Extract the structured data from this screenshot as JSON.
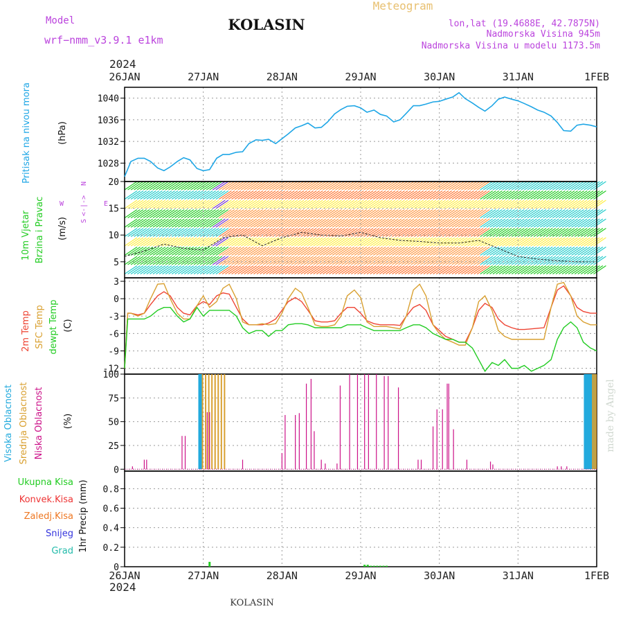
{
  "header": {
    "model_label": "Model",
    "model_name": "wrf−nmm_v3.9.1  e1km",
    "station": "KOLASIN",
    "meteogram": "Meteogram",
    "lonlat": "lon,lat (19.4688E, 42.7875N)",
    "altitude": "Nadmorska Visina 945m",
    "model_altitude": "Nadmorska Visina u modelu 1173.5m",
    "year": "2024",
    "footer_station": "KOLASIN",
    "watermark": "made by Angel"
  },
  "time_axis": {
    "labels": [
      "26JAN",
      "27JAN",
      "28JAN",
      "29JAN",
      "30JAN",
      "31JAN",
      "1FEB"
    ]
  },
  "colors": {
    "pressure": "#1ea6e6",
    "temp2m": "#ee4433",
    "sfc": "#d9a030",
    "dewpt": "#22cc22",
    "high_cloud": "#22aadd",
    "mid_cloud": "#d9a030",
    "low_cloud": "#cc1188",
    "grid": "#999999",
    "wind_label": "#22cc22",
    "wind_dir": "#bb44dd"
  },
  "chart_data": [
    {
      "type": "line",
      "panel": "pressure",
      "ylabel_text": "Pritisak na nivou mora",
      "unit": "(hPa)",
      "yticks": [
        1028,
        1032,
        1036,
        1040
      ],
      "ylim": [
        1024.6,
        1042
      ],
      "grid": true,
      "x_days": [
        0,
        0.08,
        0.17,
        0.25,
        0.33,
        0.42,
        0.5,
        0.58,
        0.67,
        0.75,
        0.83,
        0.92,
        1.0,
        1.08,
        1.17,
        1.25,
        1.33,
        1.42,
        1.5,
        1.58,
        1.67,
        1.75,
        1.83,
        1.92,
        2.0,
        2.08,
        2.17,
        2.25,
        2.33,
        2.42,
        2.5,
        2.58,
        2.67,
        2.75,
        2.83,
        2.92,
        3.0,
        3.08,
        3.17,
        3.25,
        3.33,
        3.42,
        3.5,
        3.58,
        3.67,
        3.75,
        3.83,
        3.92,
        4.0,
        4.08,
        4.17,
        4.25,
        4.33,
        4.42,
        4.5,
        4.58,
        4.67,
        4.75,
        4.83,
        4.92,
        5.0,
        5.08,
        5.17,
        5.25,
        5.33,
        5.42,
        5.5,
        5.58,
        5.67,
        5.75,
        5.83,
        5.92,
        6.0
      ],
      "series": [
        {
          "values": [
            1025.5,
            1028.3,
            1028.9,
            1028.9,
            1028.3,
            1027.1,
            1026.6,
            1027.3,
            1028.3,
            1029.0,
            1028.6,
            1027.0,
            1026.6,
            1026.8,
            1028.9,
            1029.6,
            1029.6,
            1030.0,
            1030.1,
            1031.6,
            1032.3,
            1032.2,
            1032.4,
            1031.6,
            1032.5,
            1033.4,
            1034.5,
            1034.9,
            1035.4,
            1034.5,
            1034.6,
            1035.6,
            1037.1,
            1037.9,
            1038.5,
            1038.6,
            1038.2,
            1037.4,
            1037.8,
            1037.0,
            1036.7,
            1035.6,
            1036.0,
            1037.2,
            1038.6,
            1038.6,
            1038.9,
            1039.3,
            1039.4,
            1039.8,
            1040.2,
            1041.0,
            1039.9,
            1039.1,
            1038.3,
            1037.6,
            1038.6,
            1039.8,
            1040.2,
            1039.8,
            1039.5,
            1039.0,
            1038.4,
            1037.8,
            1037.4,
            1036.7,
            1035.5,
            1034.0,
            1033.9,
            1035.0,
            1035.2,
            1035.0,
            1034.7
          ]
        }
      ]
    },
    {
      "type": "line",
      "panel": "wind",
      "ylabel_text": [
        "10m Vjetar",
        "Brzina i Pravac"
      ],
      "unit": "(m/s)",
      "direction_legend": {
        "n": "N",
        "s": "S",
        "w": "W",
        "e": "E"
      },
      "yticks": [
        5,
        10,
        15,
        20
      ],
      "ylim": [
        2,
        20
      ],
      "grid": true,
      "x_days": [
        0,
        0.25,
        0.5,
        0.75,
        1.0,
        1.25,
        1.5,
        1.75,
        2.0,
        2.25,
        2.5,
        2.75,
        3.0,
        3.25,
        3.5,
        3.75,
        4.0,
        4.25,
        4.5,
        4.75,
        5.0,
        5.25,
        5.5,
        5.75,
        6.0
      ],
      "series": [
        {
          "values": [
            6,
            7,
            8.3,
            7.5,
            7.2,
            9.5,
            10,
            8,
            9.5,
            10.5,
            10,
            9.8,
            10.5,
            9.5,
            9,
            8.8,
            8.5,
            8.5,
            9,
            7.5,
            6,
            5.5,
            5.2,
            5,
            5
          ]
        }
      ],
      "barb_colorbands": [
        "#22cc22",
        "#22cccc",
        "#ffee44",
        "#ff9944",
        "#ff7733",
        "#7733cc"
      ]
    },
    {
      "type": "line",
      "panel": "temperature",
      "ylabels": [
        "2m Temp",
        "SFC Temp",
        "dewpt Temp"
      ],
      "unit": "(C)",
      "yticks": [
        -12,
        -9,
        -6,
        -3,
        0,
        3
      ],
      "ylim": [
        -13,
        3.6
      ],
      "grid": true,
      "x_days": [
        0,
        0.04,
        0.08,
        0.17,
        0.25,
        0.33,
        0.42,
        0.5,
        0.58,
        0.67,
        0.75,
        0.83,
        0.92,
        1.0,
        1.08,
        1.17,
        1.25,
        1.33,
        1.42,
        1.5,
        1.58,
        1.67,
        1.75,
        1.83,
        1.92,
        2.0,
        2.08,
        2.17,
        2.25,
        2.33,
        2.42,
        2.5,
        2.58,
        2.67,
        2.75,
        2.83,
        2.92,
        3.0,
        3.08,
        3.17,
        3.25,
        3.33,
        3.42,
        3.5,
        3.58,
        3.67,
        3.75,
        3.83,
        3.92,
        4.0,
        4.08,
        4.17,
        4.25,
        4.33,
        4.42,
        4.5,
        4.58,
        4.67,
        4.75,
        4.83,
        4.92,
        5.0,
        5.08,
        5.17,
        5.25,
        5.33,
        5.42,
        5.5,
        5.58,
        5.67,
        5.75,
        5.83,
        5.92,
        6.0
      ],
      "series": [
        {
          "name": "2m Temp",
          "values": [
            -12,
            -2.5,
            -2.5,
            -2.8,
            -2.5,
            -1,
            0.5,
            1.2,
            0.5,
            -1.5,
            -2.5,
            -2.8,
            -1.2,
            -0.5,
            -1,
            0.5,
            1,
            0.8,
            -1.5,
            -3.5,
            -4.5,
            -4.5,
            -4.5,
            -4.2,
            -3.5,
            -2,
            -0.5,
            0.2,
            -0.5,
            -2,
            -3.8,
            -4,
            -4,
            -3.8,
            -2.5,
            -1.5,
            -1.5,
            -2.5,
            -3.8,
            -4.3,
            -4.5,
            -4.5,
            -4.5,
            -4.6,
            -3,
            -1.5,
            -1,
            -2,
            -4.5,
            -5.5,
            -6.5,
            -7,
            -7.5,
            -7.5,
            -5,
            -2,
            -0.8,
            -1.5,
            -3.5,
            -4.5,
            -5,
            -5.3,
            -5.3,
            -5.2,
            -5.1,
            -5,
            -1.5,
            1.5,
            2.2,
            0.5,
            -1.5,
            -2.2,
            -2.5,
            -2.5
          ]
        },
        {
          "name": "SFC Temp",
          "values": [
            -12,
            -2.5,
            -2.5,
            -3,
            -2.5,
            0,
            2.5,
            2.6,
            0,
            -2.5,
            -3.5,
            -3.5,
            -1.2,
            0.5,
            -1.5,
            -0.5,
            1.8,
            2.5,
            0,
            -4,
            -4.5,
            -4.5,
            -4.3,
            -4.5,
            -4.3,
            -2.5,
            0,
            1.8,
            1,
            -1.5,
            -4.5,
            -4.8,
            -4.8,
            -4.5,
            -3,
            0.5,
            1.5,
            0.2,
            -4,
            -4.8,
            -4.8,
            -4.8,
            -5,
            -5.2,
            -3,
            1.5,
            2.5,
            0.5,
            -4.5,
            -6,
            -7,
            -7.5,
            -8,
            -8,
            -5,
            -0.5,
            0.5,
            -2,
            -5.5,
            -6.5,
            -7,
            -7,
            -7,
            -7,
            -7,
            -7,
            -1.5,
            2.5,
            2.8,
            0.5,
            -3,
            -4,
            -4.5,
            -4.5
          ]
        },
        {
          "name": "dewpt Temp",
          "values": [
            -12,
            -3.5,
            -3.5,
            -3.5,
            -3.5,
            -3,
            -2,
            -1.5,
            -1.5,
            -3,
            -4,
            -3.5,
            -1.5,
            -3,
            -2,
            -2,
            -2,
            -2,
            -3,
            -5,
            -6,
            -5.5,
            -5.5,
            -6.5,
            -5.5,
            -5.5,
            -4.5,
            -4.3,
            -4.3,
            -4.5,
            -5,
            -5,
            -5,
            -5,
            -5,
            -4.5,
            -4.5,
            -4.5,
            -5,
            -5.5,
            -5.5,
            -5.5,
            -5.5,
            -5.5,
            -5,
            -4.5,
            -4.5,
            -5,
            -6,
            -6.5,
            -7,
            -7,
            -7.5,
            -7.5,
            -8.5,
            -10.5,
            -12.5,
            -11,
            -11.5,
            -10.5,
            -12,
            -12,
            -11.5,
            -12.5,
            -12,
            -11.5,
            -10.5,
            -7,
            -5,
            -4,
            -5,
            -7.5,
            -8.5,
            -9
          ]
        }
      ]
    },
    {
      "type": "bar",
      "panel": "clouds",
      "ylabels": [
        "Visoka Oblacnost",
        "Srednja Oblacnost",
        "Niska Oblacnost"
      ],
      "unit": "(%)",
      "yticks": [
        0,
        25,
        50,
        75,
        100
      ],
      "ylim": [
        -2,
        100
      ],
      "grid": true,
      "series": [
        {
          "name": "Visoka Oblacnost",
          "x_days": [
            0.95,
            0.97,
            5.85,
            5.87,
            5.89,
            5.91,
            5.93,
            5.95,
            5.97
          ],
          "values": [
            100,
            100,
            100,
            100,
            100,
            100,
            100,
            100,
            100
          ]
        },
        {
          "name": "Srednja Oblacnost",
          "x_days": [
            0.99,
            1.03,
            1.07,
            1.11,
            1.15,
            1.19,
            1.23,
            1.27,
            5.95,
            5.97,
            5.99
          ],
          "values": [
            100,
            100,
            100,
            100,
            100,
            100,
            100,
            100,
            100,
            100,
            100
          ]
        },
        {
          "name": "Niska Oblacnost",
          "x_days": [
            0.1,
            0.25,
            0.28,
            0.73,
            0.77,
            1.05,
            1.08,
            1.5,
            2.0,
            2.04,
            2.17,
            2.22,
            2.31,
            2.37,
            2.41,
            2.5,
            2.55,
            2.7,
            2.74,
            2.86,
            2.96,
            3.05,
            3.1,
            3.2,
            3.3,
            3.35,
            3.48,
            3.73,
            3.77,
            3.92,
            3.97,
            4.04,
            4.1,
            4.12,
            4.18,
            4.35,
            4.65,
            4.68,
            5.5,
            5.55,
            5.62
          ],
          "values": [
            3,
            10,
            10,
            35,
            35,
            60,
            60,
            10,
            17,
            57,
            57,
            59,
            90,
            95,
            40,
            10,
            6,
            6,
            88,
            100,
            100,
            100,
            100,
            100,
            98,
            98,
            86,
            10,
            10,
            45,
            63,
            63,
            90,
            90,
            42,
            10,
            8,
            5,
            3,
            3,
            3
          ]
        }
      ]
    },
    {
      "type": "bar",
      "panel": "precip",
      "legend": [
        "Ukupna Kisa",
        "Konvek.Kisa",
        "Zaledj.Kisa",
        "Snijeg",
        "Grad"
      ],
      "legend_colors": [
        "#22cc22",
        "#ee3333",
        "#ee7722",
        "#3333dd",
        "#22bbaa"
      ],
      "ylabel_text": "1hr Precip (mm)",
      "yticks": [
        0,
        0.2,
        0.4,
        0.6,
        0.8
      ],
      "ylim": [
        0,
        0.98
      ],
      "grid": true,
      "series": [
        {
          "name": "Ukupna Kisa",
          "x_days": [
            1.08,
            3.05,
            3.09,
            3.13,
            3.17,
            3.21,
            3.25,
            3.29,
            3.33
          ],
          "values": [
            0.05,
            0.02,
            0.02,
            0.01,
            0.01,
            0.01,
            0.01,
            0.01,
            0.01
          ]
        }
      ]
    }
  ]
}
